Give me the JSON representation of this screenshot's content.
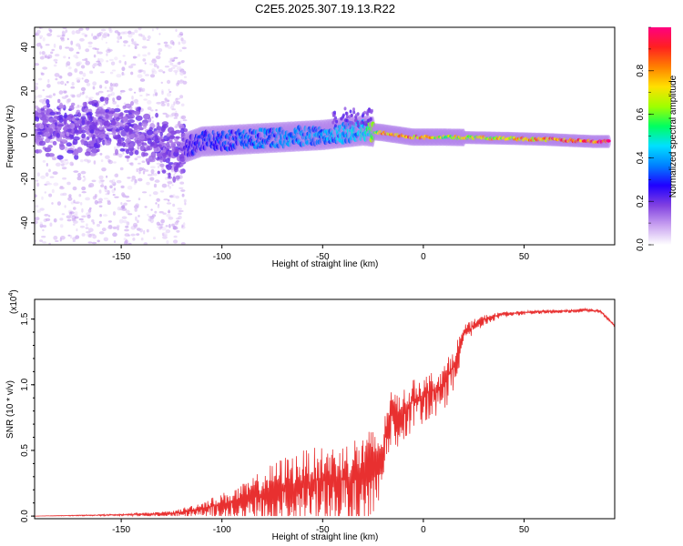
{
  "figure_title": "C2E5.2025.307.19.13.R22",
  "chart_data": [
    {
      "type": "heatmap",
      "name": "spectrogram",
      "xlabel": "Height of straight line (km)",
      "ylabel": "Frequency (Hz)",
      "xlim": [
        -193,
        95
      ],
      "ylim": [
        -50,
        49
      ],
      "xticks": [
        -150,
        -100,
        -50,
        0,
        50
      ],
      "xtick_labels": [
        "-150",
        "-100",
        "-50",
        "0",
        "50"
      ],
      "yticks": [
        -40,
        -20,
        0,
        20,
        40
      ],
      "ytick_labels": [
        "-40",
        "-20",
        "0",
        "20",
        "40"
      ],
      "description_points": [
        {
          "x": -185,
          "f": 3,
          "amp": 0.12
        },
        {
          "x": -170,
          "f": 2,
          "amp": 0.15
        },
        {
          "x": -155,
          "f": 6,
          "amp": 0.2
        },
        {
          "x": -140,
          "f": 0,
          "amp": 0.15
        },
        {
          "x": -125,
          "f": -8,
          "amp": 0.2
        },
        {
          "x": -110,
          "f": -3,
          "amp": 0.3
        },
        {
          "x": -90,
          "f": -2,
          "amp": 0.35
        },
        {
          "x": -70,
          "f": -1,
          "amp": 0.38
        },
        {
          "x": -50,
          "f": 0,
          "amp": 0.4
        },
        {
          "x": -30,
          "f": 2,
          "amp": 0.45
        },
        {
          "x": -20,
          "f": 1,
          "amp": 0.8
        },
        {
          "x": -5,
          "f": -1,
          "amp": 0.85
        },
        {
          "x": 10,
          "f": -1,
          "amp": 0.7
        },
        {
          "x": 40,
          "f": -1.5,
          "amp": 0.75
        },
        {
          "x": 60,
          "f": -2,
          "amp": 0.85
        },
        {
          "x": 85,
          "f": -3,
          "amp": 0.95
        }
      ],
      "colorbar": {
        "label": "Normalized spectral amplitude",
        "range": [
          0,
          1
        ],
        "ticks": [
          0.0,
          0.2,
          0.4,
          0.6,
          0.8
        ],
        "tick_labels": [
          "0.0",
          "0.2",
          "0.4",
          "0.6",
          "0.8"
        ],
        "colors": [
          "#ffffff",
          "#c8a0f0",
          "#8040e0",
          "#2000ff",
          "#0080ff",
          "#00e0ff",
          "#00ff60",
          "#a0ff00",
          "#ffe000",
          "#ff8000",
          "#ff2020",
          "#ff0080"
        ]
      }
    },
    {
      "type": "line",
      "name": "snr",
      "xlabel": "Height of straight line (km)",
      "ylabel": "SNR (10 * v/v)",
      "scale_label": "(x10",
      "scale_exponent": "4",
      "scale_close": ")",
      "xlim": [
        -193,
        95
      ],
      "ylim": [
        -0.02,
        1.65
      ],
      "xticks": [
        -150,
        -100,
        -50,
        0,
        50
      ],
      "xtick_labels": [
        "-150",
        "-100",
        "-50",
        "0",
        "50"
      ],
      "yticks": [
        0.0,
        0.5,
        1.0,
        1.5
      ],
      "ytick_labels": [
        "0.0",
        "0.5",
        "1.0",
        "1.5"
      ],
      "color": "#e83030",
      "series": [
        {
          "name": "SNR",
          "x": [
            -193,
            -150,
            -125,
            -120,
            -110,
            -100,
            -90,
            -80,
            -70,
            -60,
            -50,
            -40,
            -35,
            -30,
            -25,
            -20,
            -18,
            -15,
            -10,
            -5,
            0,
            5,
            10,
            15,
            20,
            25,
            30,
            40,
            50,
            60,
            70,
            80,
            88,
            95
          ],
          "y": [
            0.0,
            0.01,
            0.02,
            0.03,
            0.06,
            0.09,
            0.12,
            0.17,
            0.22,
            0.25,
            0.28,
            0.28,
            0.3,
            0.32,
            0.4,
            0.46,
            0.72,
            0.78,
            0.8,
            0.88,
            0.92,
            0.96,
            1.0,
            1.15,
            1.38,
            1.45,
            1.5,
            1.54,
            1.55,
            1.56,
            1.56,
            1.57,
            1.56,
            1.45
          ],
          "spread": [
            0.0,
            0.01,
            0.03,
            0.05,
            0.08,
            0.14,
            0.2,
            0.3,
            0.38,
            0.42,
            0.42,
            0.45,
            0.5,
            0.52,
            0.45,
            0.3,
            0.32,
            0.3,
            0.28,
            0.26,
            0.26,
            0.24,
            0.24,
            0.22,
            0.12,
            0.08,
            0.05,
            0.03,
            0.02,
            0.02,
            0.02,
            0.02,
            0.02,
            0.02
          ]
        }
      ]
    }
  ]
}
